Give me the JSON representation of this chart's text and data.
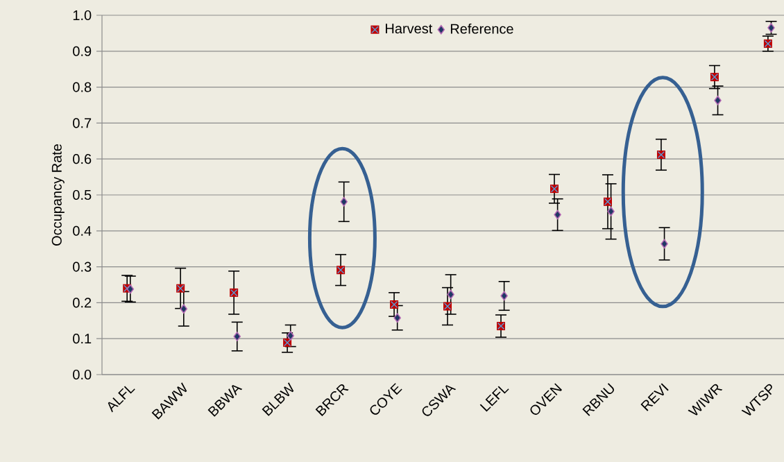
{
  "chart_data": {
    "type": "scatter",
    "ylabel": "Occupancy Rate",
    "categories": [
      "ALFL",
      "BAWW",
      "BBWA",
      "BLBW",
      "BRCR",
      "COYE",
      "CSWA",
      "LEFL",
      "OVEN",
      "RBNU",
      "REVI",
      "WIWR",
      "WTSP"
    ],
    "series": [
      {
        "name": "Harvest",
        "color": "#c00000",
        "marker": "square",
        "values": [
          0.24,
          0.24,
          0.228,
          0.089,
          0.291,
          0.195,
          0.19,
          0.135,
          0.517,
          0.481,
          0.612,
          0.828,
          0.921
        ],
        "errors": [
          0.036,
          0.056,
          0.06,
          0.027,
          0.043,
          0.033,
          0.052,
          0.031,
          0.04,
          0.075,
          0.043,
          0.032,
          0.021
        ]
      },
      {
        "name": "Reference",
        "color": "#1f3864",
        "marker": "diamond",
        "values": [
          0.238,
          0.183,
          0.106,
          0.108,
          0.481,
          0.158,
          0.223,
          0.219,
          0.445,
          0.454,
          0.364,
          0.763,
          0.965
        ],
        "errors": [
          0.036,
          0.048,
          0.04,
          0.03,
          0.055,
          0.034,
          0.055,
          0.04,
          0.044,
          0.077,
          0.045,
          0.04,
          0.018
        ]
      }
    ],
    "ylim": [
      0,
      1
    ],
    "yticks": [
      {
        "value": 0,
        "label": "0.0"
      },
      {
        "value": 0.1,
        "label": "0.1"
      },
      {
        "value": 0.2,
        "label": "0.2"
      },
      {
        "value": 0.3,
        "label": "0.3"
      },
      {
        "value": 0.4,
        "label": "0.4"
      },
      {
        "value": 0.5,
        "label": "0.5"
      },
      {
        "value": 0.6,
        "label": "0.6"
      },
      {
        "value": 0.7,
        "label": "0.7"
      },
      {
        "value": 0.8,
        "label": "0.8"
      },
      {
        "value": 0.9,
        "label": "0.9"
      },
      {
        "value": 1,
        "label": "1.0"
      }
    ],
    "grid": "y",
    "legend": "top"
  }
}
